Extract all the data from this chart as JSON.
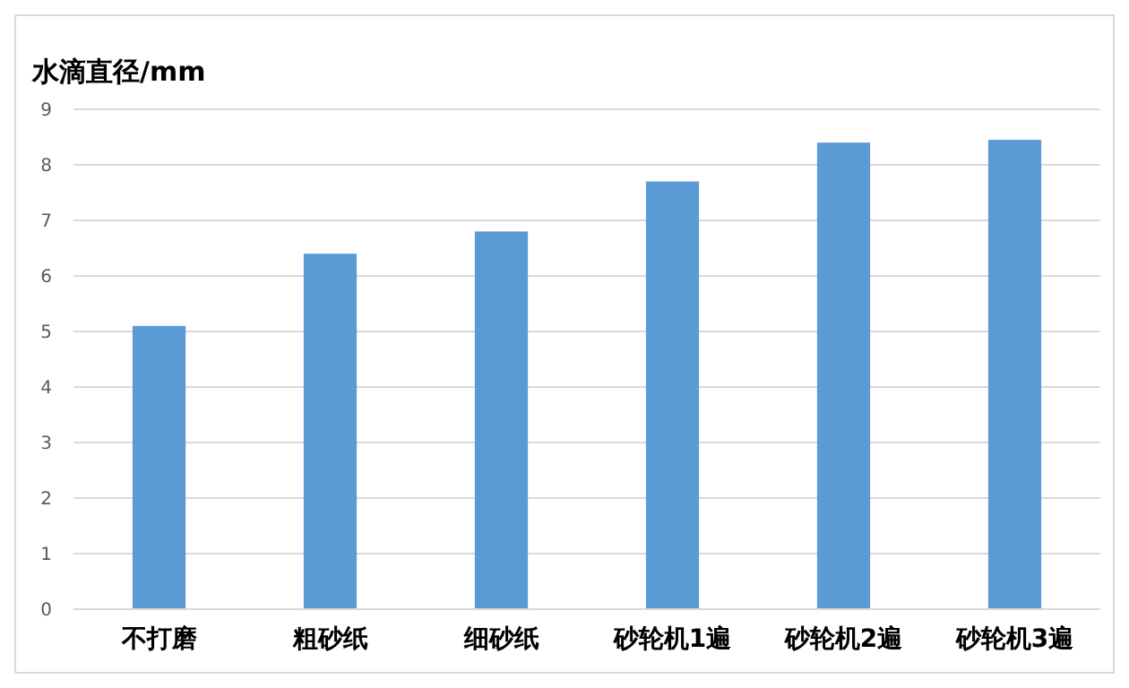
{
  "chart_data": {
    "type": "bar",
    "ylabel": "水滴直径/mm",
    "categories": [
      "不打磨",
      "粗砂纸",
      "细砂纸",
      "砂轮机1遍",
      "砂轮机2遍",
      "砂轮机3遍"
    ],
    "values": [
      5.1,
      6.4,
      6.8,
      7.7,
      8.4,
      8.45
    ],
    "color": "#5b9bd5",
    "ylim": [
      0,
      9
    ],
    "yticks": [
      0,
      1,
      2,
      3,
      4,
      5,
      6,
      7,
      8,
      9
    ],
    "grid": "y"
  }
}
